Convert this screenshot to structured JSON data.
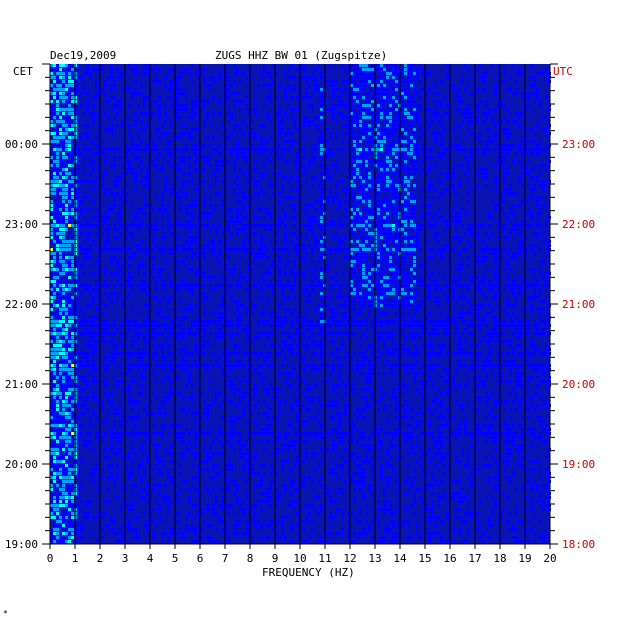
{
  "chart_data": {
    "type": "heatmap",
    "header_left": "Dec19,2009",
    "header_center": "ZUGS HHZ BW 01 (Zugspitze)",
    "left_axis_title": "CET",
    "right_axis_title": "UTC",
    "xlabel": "FREQUENCY (HZ)",
    "x_ticks": [
      "0",
      "1",
      "2",
      "3",
      "4",
      "5",
      "6",
      "7",
      "8",
      "9",
      "10",
      "11",
      "12",
      "13",
      "14",
      "15",
      "16",
      "17",
      "18",
      "19",
      "20"
    ],
    "xlim": [
      0,
      20
    ],
    "left_time_ticks": [
      "00:00",
      "23:00",
      "22:00",
      "21:00",
      "20:00",
      "19:00"
    ],
    "right_time_ticks": [
      "23:00",
      "22:00",
      "21:00",
      "20:00",
      "19:00",
      "18:00"
    ],
    "tick_hours_from_bottom": [
      5,
      4,
      3,
      2,
      1,
      0
    ],
    "time_span_hours": 6,
    "colorscale": [
      "#00008b",
      "#0000ff",
      "#00a0ff",
      "#00ffff",
      "#ffff00",
      "#ff0000"
    ],
    "energy_bands": [
      {
        "fmin": 0.0,
        "fmax": 1.0,
        "level": "high"
      },
      {
        "fmin": 12.0,
        "fmax": 14.6,
        "level": "medium",
        "hours": [
          3.0,
          6.0
        ]
      },
      {
        "fmin": 10.8,
        "fmax": 11.0,
        "level": "medium",
        "hours": [
          2.8,
          5.7
        ]
      }
    ],
    "footnote_mark": "*"
  }
}
